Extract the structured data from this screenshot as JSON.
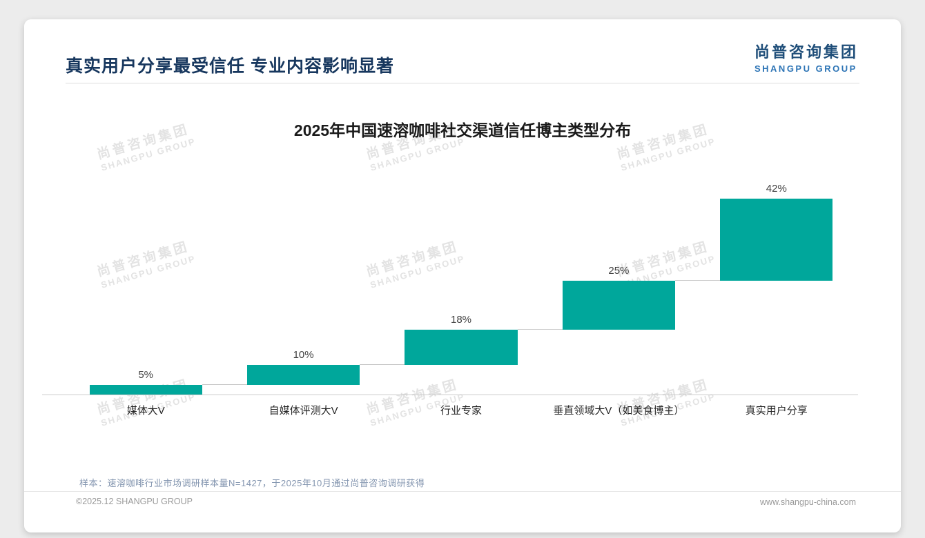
{
  "header": {
    "title": "真实用户分享最受信任 专业内容影响显著",
    "logo_cn": "尚普咨询集团",
    "logo_en": "SHANGPU GROUP"
  },
  "watermark": {
    "line1": "尚普咨询集团",
    "line2": "SHANGPU GROUP"
  },
  "chart_data": {
    "type": "bar",
    "subtype": "waterfall-staircase",
    "title": "2025年中国速溶咖啡社交渠道信任博主类型分布",
    "categories": [
      "媒体大V",
      "自媒体评测大V",
      "行业专家",
      "垂直领域大V（如美食博主）",
      "真实用户分享"
    ],
    "values": [
      5,
      10,
      18,
      25,
      42
    ],
    "labels": [
      "5%",
      "10%",
      "18%",
      "25%",
      "42%"
    ],
    "unit": "%",
    "ylim": [
      0,
      100
    ],
    "bar_color": "#00A79B",
    "grid": false,
    "legend": false
  },
  "footnote": "样本：速溶咖啡行业市场调研样本量N=1427，于2025年10月通过尚普咨询调研获得",
  "footer": {
    "left": "©2025.12 SHANGPU GROUP",
    "right": "www.shangpu-china.com"
  }
}
